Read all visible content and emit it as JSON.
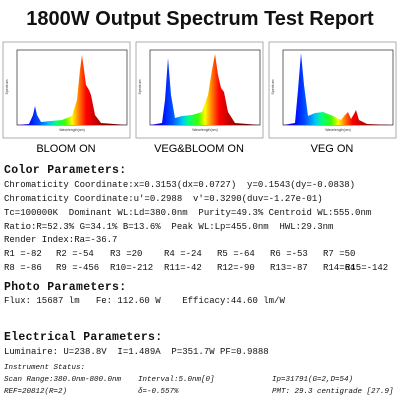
{
  "header": {
    "title": "1800W Output Spectrum Test Report"
  },
  "panels": [
    {
      "caption": "BLOOM ON",
      "y_label": "Spectrum",
      "x_label": "Wavelength(nm)"
    },
    {
      "caption": "VEG&BLOOM ON",
      "y_label": "Spectrum",
      "x_label": "Wavelength(nm)"
    },
    {
      "caption": "VEG ON",
      "y_label": "Spectrum",
      "x_label": "Wavelength(nm)"
    }
  ],
  "color_parameters": {
    "heading": "Color Parameters:",
    "lines": [
      "Chromaticity Coordinate:x=0.3153(dx=0.0727)  y=0.1543(dy=-0.0838)",
      "Chromaticity Coordinate:u'=0.2988  v'=0.3290(duv=-1.27e-01)",
      "Tc=100000K  Dominant WL:Ld=380.0nm  Purity=49.3% Centroid WL:555.0nm",
      "Ratio:R=52.3% G=34.1% B=13.6%  Peak WL:Lp=455.0nm  HWL:29.3nm",
      "Render Index:Ra=-36.7"
    ],
    "render_indices": [
      [
        "R1 =-82",
        "R2 =-54",
        "R3 =20",
        "R4 =-24",
        "R5 =-64",
        "R6 =-53",
        "R7 =50"
      ],
      [
        "R8 =-86",
        "R9 =-456",
        "R10=-212",
        "R11=-42",
        "R12=-90",
        "R13=-87",
        "R14=64",
        "R15=-142"
      ]
    ]
  },
  "photo_parameters": {
    "heading": "Photo Parameters:",
    "line": "Flux: 15687 lm   Fe: 112.60 W    Efficacy:44.60 lm/W"
  },
  "electrical_parameters": {
    "heading": "Electrical Parameters:",
    "line": "Luminaire: U=238.8V  I=1.489A  P=351.7W PF=0.9888"
  },
  "instrument_status": {
    "heading": "Instrument Status:",
    "rows": [
      [
        "Scan Range:380.0nm-800.0nm",
        "Interval:5.0nm[0]",
        "Ip=31791(G=2,D=54)"
      ],
      [
        "REF=20812(R=2)",
        "δ=-0.557%",
        "PMT: 29.3 centigrade [27.9]"
      ]
    ]
  }
}
